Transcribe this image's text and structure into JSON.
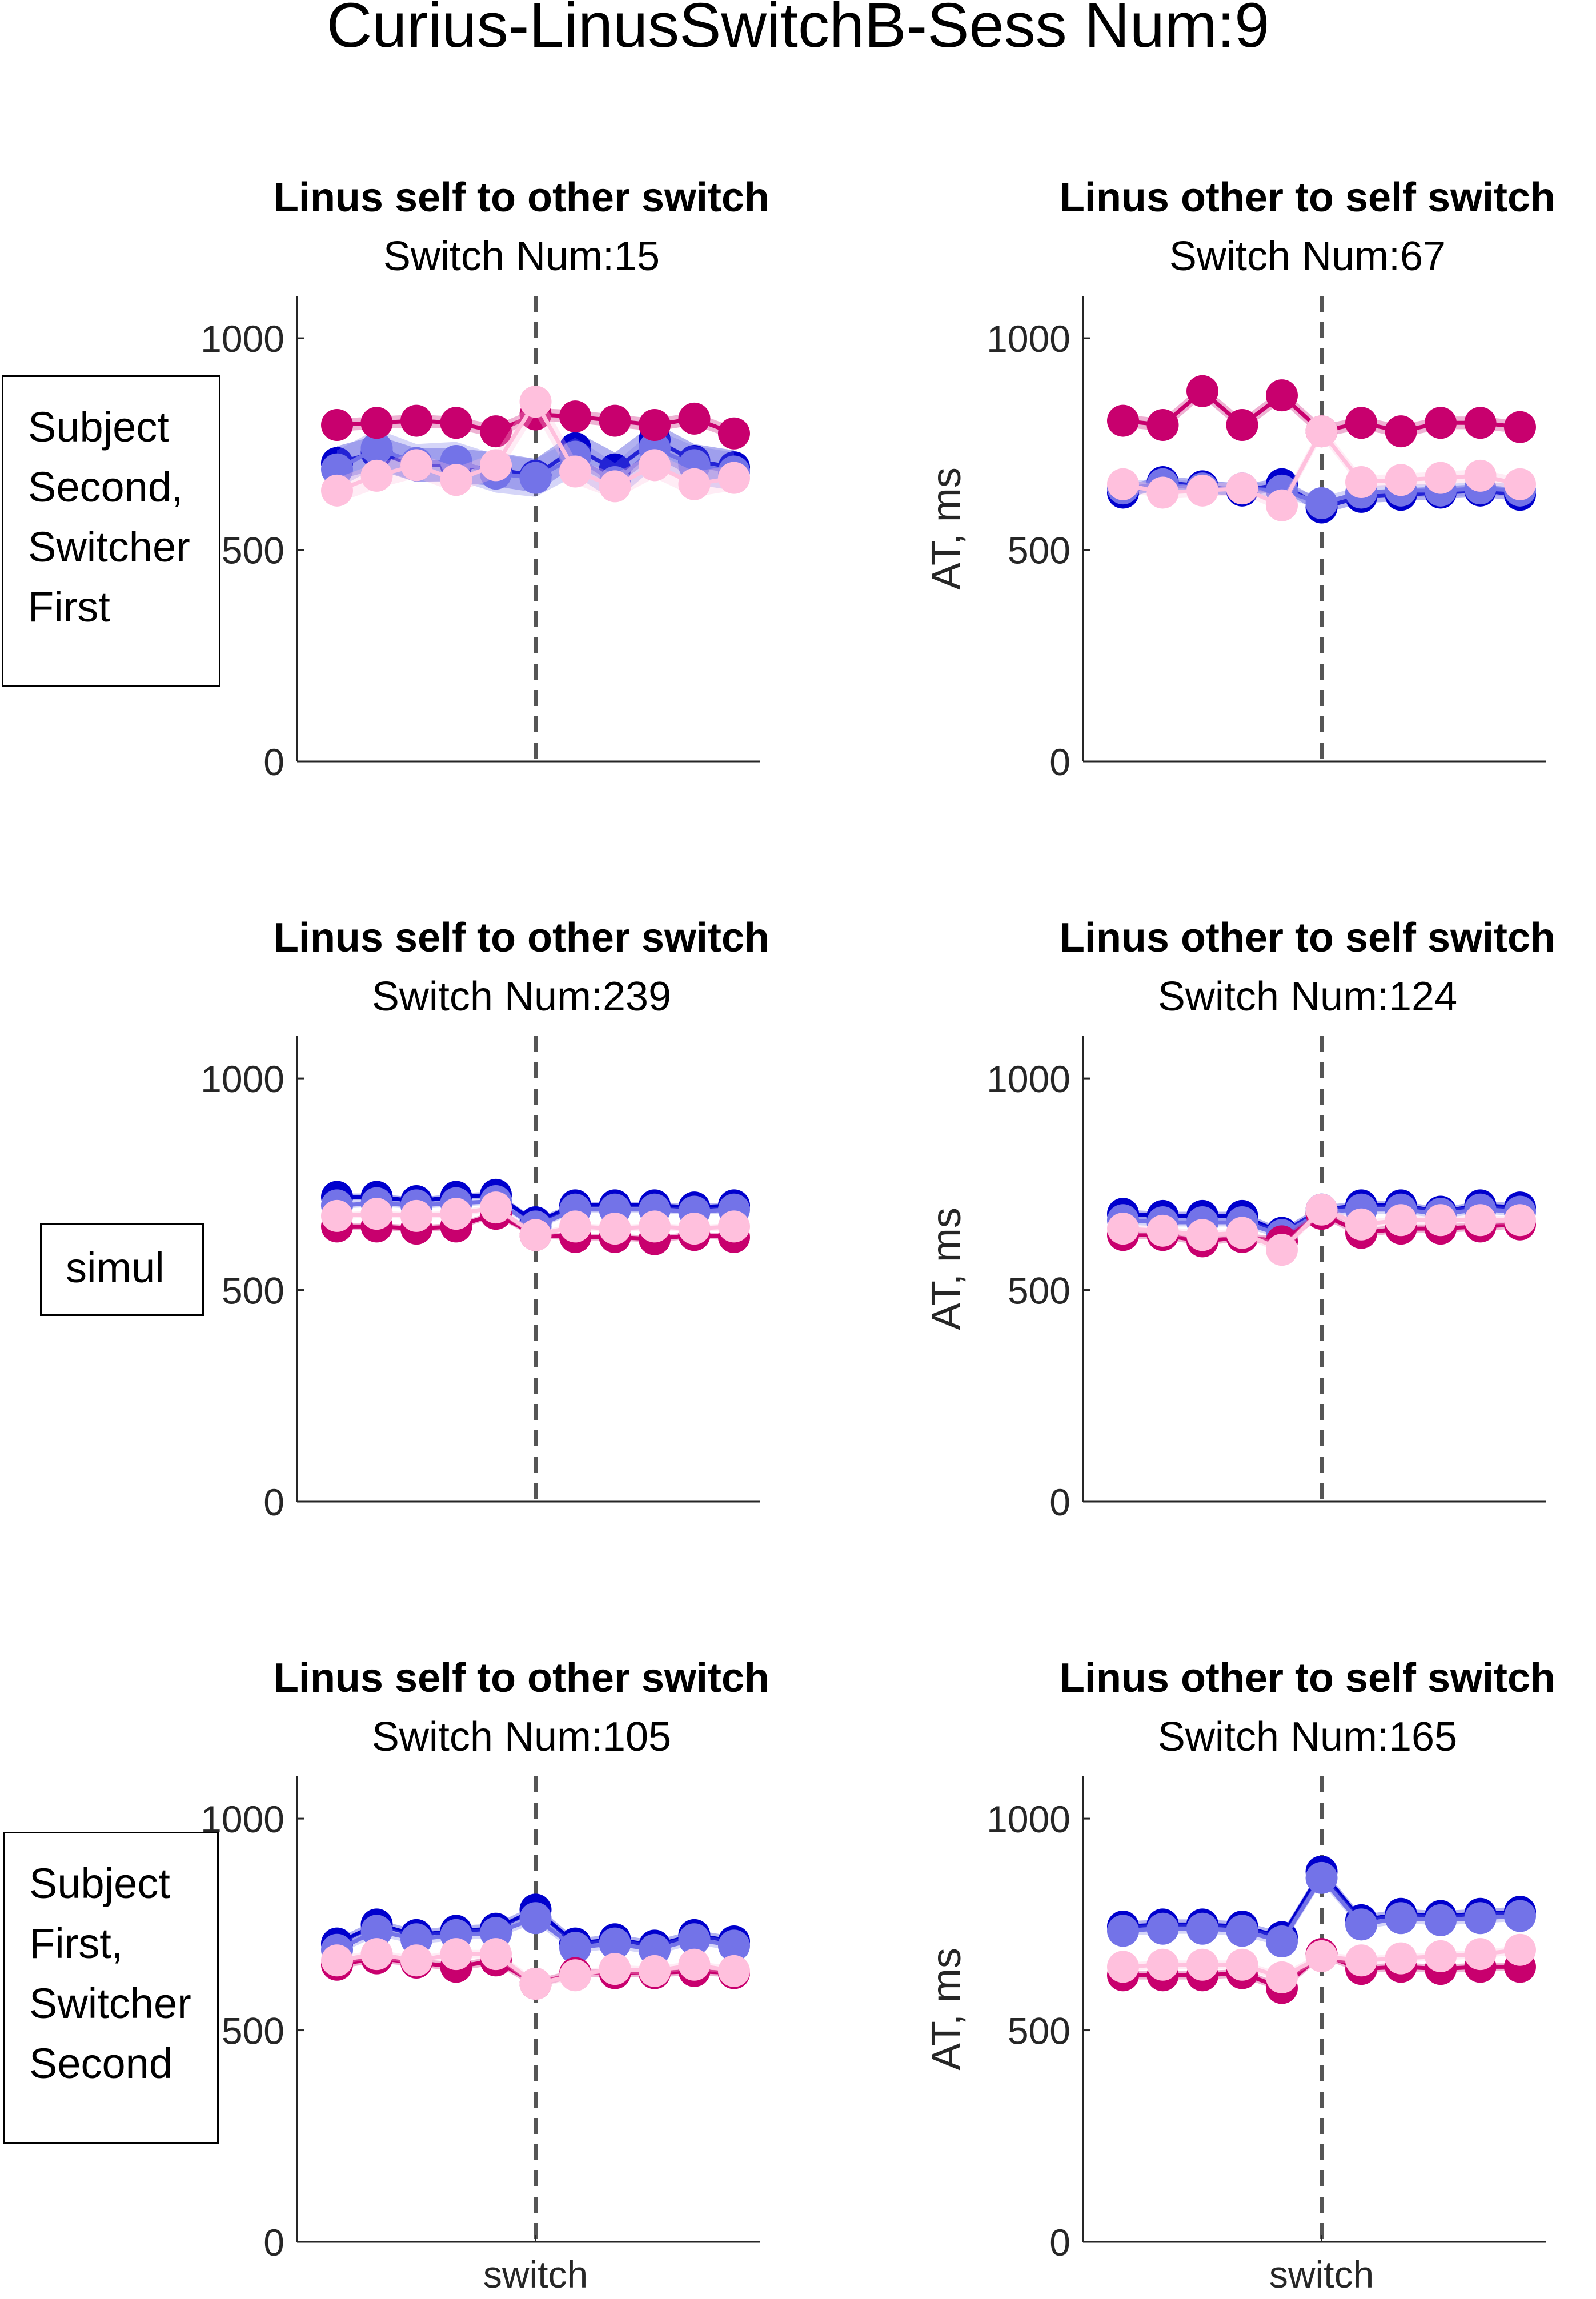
{
  "figure_title": "Curius-LinusSwitchB-Sess Num:9",
  "colors": {
    "dark_blue": "#0000CD",
    "light_blue": "#7373E8",
    "magenta": "#C8006E",
    "light_pink": "#FFC0DD",
    "switch_line": "#555555"
  },
  "row_labels": [
    [
      "Subject",
      "Second,",
      "Switcher",
      "First"
    ],
    [
      "simul"
    ],
    [
      "Subject",
      "First,",
      "Switcher",
      "Second"
    ]
  ],
  "chart_data": [
    {
      "type": "line",
      "row": 0,
      "col": 0,
      "title": "Linus self to other switch",
      "subtitle": "Switch Num:15",
      "ylabel": "",
      "xlabel": "",
      "xtick_label": "",
      "ylim": [
        0,
        1100
      ],
      "yticks": [
        0,
        500,
        1000
      ],
      "x": [
        -5,
        -4,
        -3,
        -2,
        -1,
        0,
        1,
        2,
        3,
        4,
        5
      ],
      "series": [
        {
          "color": "#0000CD",
          "values": [
            705,
            730,
            700,
            700,
            690,
            675,
            740,
            690,
            760,
            710,
            695
          ],
          "band": 40
        },
        {
          "color": "#7373E8",
          "values": [
            690,
            740,
            705,
            710,
            680,
            670,
            720,
            660,
            740,
            700,
            685
          ],
          "band": 45
        },
        {
          "color": "#C8006E",
          "values": [
            795,
            800,
            805,
            800,
            780,
            820,
            815,
            805,
            795,
            810,
            775
          ],
          "band": 15
        },
        {
          "color": "#FFC0DD",
          "values": [
            640,
            675,
            700,
            665,
            700,
            850,
            685,
            650,
            700,
            655,
            670
          ],
          "band": 30
        }
      ]
    },
    {
      "type": "line",
      "row": 0,
      "col": 1,
      "title": "Linus other to self switch",
      "subtitle": "Switch Num:67",
      "ylabel": "AT, ms",
      "xlabel": "",
      "xtick_label": "",
      "ylim": [
        0,
        1100
      ],
      "yticks": [
        0,
        500,
        1000
      ],
      "x": [
        -5,
        -4,
        -3,
        -2,
        -1,
        0,
        1,
        2,
        3,
        4,
        5
      ],
      "series": [
        {
          "color": "#0000CD",
          "values": [
            635,
            660,
            650,
            640,
            655,
            600,
            625,
            630,
            635,
            640,
            630
          ],
          "band": 15
        },
        {
          "color": "#7373E8",
          "values": [
            645,
            655,
            645,
            645,
            640,
            610,
            635,
            640,
            640,
            645,
            640
          ],
          "band": 15
        },
        {
          "color": "#C8006E",
          "values": [
            805,
            795,
            875,
            795,
            865,
            780,
            800,
            780,
            800,
            800,
            790
          ],
          "band": 15
        },
        {
          "color": "#FFC0DD",
          "values": [
            655,
            635,
            640,
            645,
            605,
            780,
            660,
            665,
            670,
            675,
            655
          ],
          "band": 15
        }
      ]
    },
    {
      "type": "line",
      "row": 1,
      "col": 0,
      "title": "Linus self to other switch",
      "subtitle": "Switch Num:239",
      "ylabel": "",
      "xlabel": "",
      "xtick_label": "",
      "ylim": [
        0,
        1100
      ],
      "yticks": [
        0,
        500,
        1000
      ],
      "x": [
        -5,
        -4,
        -3,
        -2,
        -1,
        0,
        1,
        2,
        3,
        4,
        5
      ],
      "series": [
        {
          "color": "#0000CD",
          "values": [
            720,
            720,
            710,
            720,
            725,
            660,
            700,
            700,
            700,
            695,
            700
          ],
          "band": 8
        },
        {
          "color": "#7373E8",
          "values": [
            700,
            705,
            700,
            705,
            710,
            650,
            690,
            690,
            690,
            685,
            690
          ],
          "band": 8
        },
        {
          "color": "#C8006E",
          "values": [
            650,
            650,
            645,
            650,
            680,
            630,
            625,
            625,
            620,
            630,
            625
          ],
          "band": 8
        },
        {
          "color": "#FFC0DD",
          "values": [
            675,
            680,
            675,
            680,
            695,
            630,
            650,
            645,
            650,
            645,
            650
          ],
          "band": 8
        }
      ]
    },
    {
      "type": "line",
      "row": 1,
      "col": 1,
      "title": "Linus other to self switch",
      "subtitle": "Switch Num:124",
      "ylabel": "AT, ms",
      "xlabel": "",
      "xtick_label": "",
      "ylim": [
        0,
        1100
      ],
      "yticks": [
        0,
        500,
        1000
      ],
      "x": [
        -5,
        -4,
        -3,
        -2,
        -1,
        0,
        1,
        2,
        3,
        4,
        5
      ],
      "series": [
        {
          "color": "#0000CD",
          "values": [
            680,
            675,
            675,
            675,
            635,
            690,
            700,
            700,
            685,
            700,
            695
          ],
          "band": 10
        },
        {
          "color": "#7373E8",
          "values": [
            665,
            660,
            660,
            660,
            630,
            685,
            690,
            690,
            680,
            690,
            685
          ],
          "band": 10
        },
        {
          "color": "#C8006E",
          "values": [
            630,
            630,
            615,
            625,
            615,
            680,
            635,
            645,
            645,
            650,
            655
          ],
          "band": 10
        },
        {
          "color": "#FFC0DD",
          "values": [
            645,
            640,
            630,
            635,
            595,
            690,
            655,
            665,
            665,
            665,
            665
          ],
          "band": 10
        }
      ]
    },
    {
      "type": "line",
      "row": 2,
      "col": 0,
      "title": "Linus self to other switch",
      "subtitle": "Switch Num:105",
      "ylabel": "",
      "xlabel": "switch",
      "xtick_label": "switch",
      "ylim": [
        0,
        1100
      ],
      "yticks": [
        0,
        500,
        1000
      ],
      "x": [
        -5,
        -4,
        -3,
        -2,
        -1,
        0,
        1,
        2,
        3,
        4,
        5
      ],
      "series": [
        {
          "color": "#0000CD",
          "values": [
            705,
            750,
            725,
            735,
            740,
            785,
            705,
            715,
            700,
            725,
            710
          ],
          "band": 12
        },
        {
          "color": "#7373E8",
          "values": [
            690,
            735,
            715,
            725,
            730,
            765,
            695,
            705,
            690,
            715,
            700
          ],
          "band": 12
        },
        {
          "color": "#C8006E",
          "values": [
            655,
            670,
            660,
            650,
            665,
            610,
            635,
            635,
            635,
            640,
            635
          ],
          "band": 10
        },
        {
          "color": "#FFC0DD",
          "values": [
            665,
            680,
            665,
            680,
            680,
            610,
            630,
            645,
            640,
            655,
            640
          ],
          "band": 10
        }
      ]
    },
    {
      "type": "line",
      "row": 2,
      "col": 1,
      "title": "Linus other to self switch",
      "subtitle": "Switch Num:165",
      "ylabel": "AT, ms",
      "xlabel": "switch",
      "xtick_label": "switch",
      "ylim": [
        0,
        1100
      ],
      "yticks": [
        0,
        500,
        1000
      ],
      "x": [
        -5,
        -4,
        -3,
        -2,
        -1,
        0,
        1,
        2,
        3,
        4,
        5
      ],
      "series": [
        {
          "color": "#0000CD",
          "values": [
            745,
            750,
            750,
            745,
            720,
            875,
            760,
            775,
            770,
            775,
            780
          ],
          "band": 12
        },
        {
          "color": "#7373E8",
          "values": [
            735,
            740,
            740,
            735,
            710,
            860,
            750,
            765,
            760,
            765,
            770
          ],
          "band": 12
        },
        {
          "color": "#C8006E",
          "values": [
            630,
            630,
            630,
            635,
            600,
            680,
            645,
            650,
            645,
            650,
            650
          ],
          "band": 10
        },
        {
          "color": "#FFC0DD",
          "values": [
            650,
            655,
            655,
            655,
            625,
            675,
            665,
            670,
            675,
            680,
            690
          ],
          "band": 10
        }
      ]
    }
  ]
}
